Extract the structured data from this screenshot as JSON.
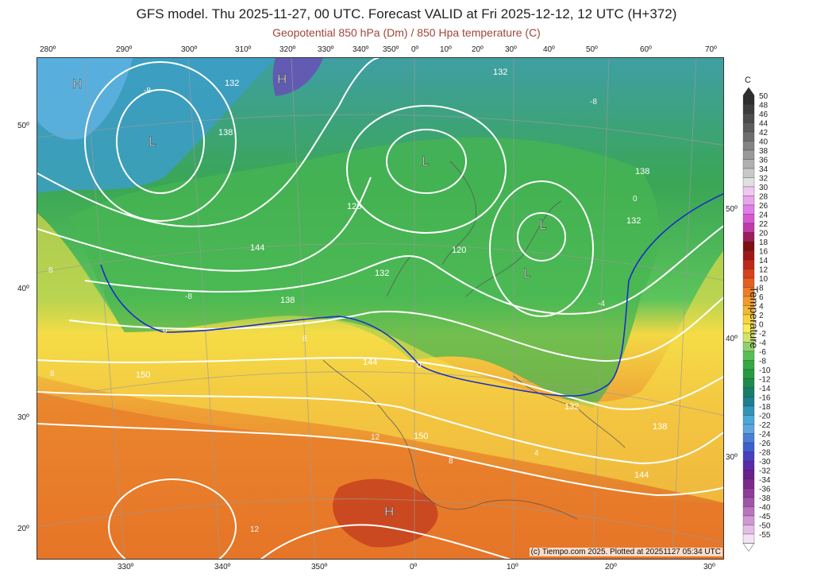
{
  "header": {
    "title": "GFS model. Thu 2025-11-27, 00 UTC. Forecast VALID at Fri 2025-12-12, 12 UTC (H+372)",
    "subtitle": "Geopotential 850 hPa (Dm) / 850 Hpa temperature (C)"
  },
  "axes": {
    "top_lon": [
      "280º",
      "290º",
      "300º",
      "310º",
      "320º",
      "330º",
      "340º",
      "350º",
      "0º",
      "10º",
      "20º",
      "30º",
      "40º",
      "50º",
      "60º",
      "70º"
    ],
    "bottom_lon": [
      "330º",
      "340º",
      "350º",
      "0º",
      "10º",
      "20º",
      "30º"
    ],
    "left_lat": [
      "50º",
      "40º",
      "30º",
      "20º"
    ],
    "right_lat": [
      "50º",
      "40º",
      "30º"
    ]
  },
  "map": {
    "pressure_labels": {
      "highs": [
        "H",
        "H",
        "H"
      ],
      "lows": [
        "L",
        "L",
        "L",
        "L",
        "L"
      ],
      "isohypse_values": [
        "132",
        "132",
        "138",
        "128",
        "144",
        "132",
        "120",
        "138",
        "132",
        "138",
        "144",
        "150",
        "150",
        "132",
        "138",
        "144"
      ],
      "isotherm_values": [
        "-8",
        "8",
        "-8",
        "8",
        "8",
        "12",
        "12",
        "8",
        "-8",
        "-4",
        "0",
        "0",
        "0",
        "4"
      ]
    },
    "colors": {
      "frame": "#333333",
      "contour": "#ffffff",
      "zero_isotherm": "#1a2ec7"
    }
  },
  "legend": {
    "unit": "C",
    "label": "Temperature",
    "ticks": [
      "50",
      "48",
      "46",
      "44",
      "42",
      "40",
      "38",
      "36",
      "34",
      "32",
      "30",
      "28",
      "26",
      "24",
      "22",
      "20",
      "18",
      "16",
      "14",
      "12",
      "10",
      "8",
      "6",
      "4",
      "2",
      "0",
      "-2",
      "-4",
      "-6",
      "-8",
      "-10",
      "-12",
      "-14",
      "-16",
      "-18",
      "-20",
      "-22",
      "-24",
      "-26",
      "-28",
      "-30",
      "-32",
      "-34",
      "-36",
      "-38",
      "-40",
      "-45",
      "-50",
      "-55"
    ],
    "colors": [
      "#2d2d2d",
      "#3c3c3c",
      "#4c4c4c",
      "#5c5c5c",
      "#6e6e6e",
      "#838383",
      "#999999",
      "#b0b0b0",
      "#c8c8c8",
      "#e0e0e0",
      "#efc7ef",
      "#e7a5ea",
      "#e07ee6",
      "#d659cf",
      "#c03aa8",
      "#9b1f5a",
      "#7a1010",
      "#a01616",
      "#c0271b",
      "#d9401c",
      "#e55f21",
      "#ee7d25",
      "#f39a2a",
      "#f5b731",
      "#f8d43c",
      "#f9ec54",
      "#cfe46b",
      "#8fd16e",
      "#58bf57",
      "#34a942",
      "#279a3e",
      "#1d8b4f",
      "#1a7d6c",
      "#1d7f8f",
      "#3096b8",
      "#4aa9d6",
      "#5fa5e0",
      "#4b7fd5",
      "#3e5fcf",
      "#4b3fbf",
      "#5a2aa9",
      "#6a1f8c",
      "#7b2a8a",
      "#8e3d98",
      "#a155aa",
      "#b874bf",
      "#cf97d3",
      "#e3bde5",
      "#f3e2f4"
    ]
  },
  "footer": {
    "copyright": "(c) Tiempo.com 2025. Plotted at 20251127 05:34 UTC"
  }
}
